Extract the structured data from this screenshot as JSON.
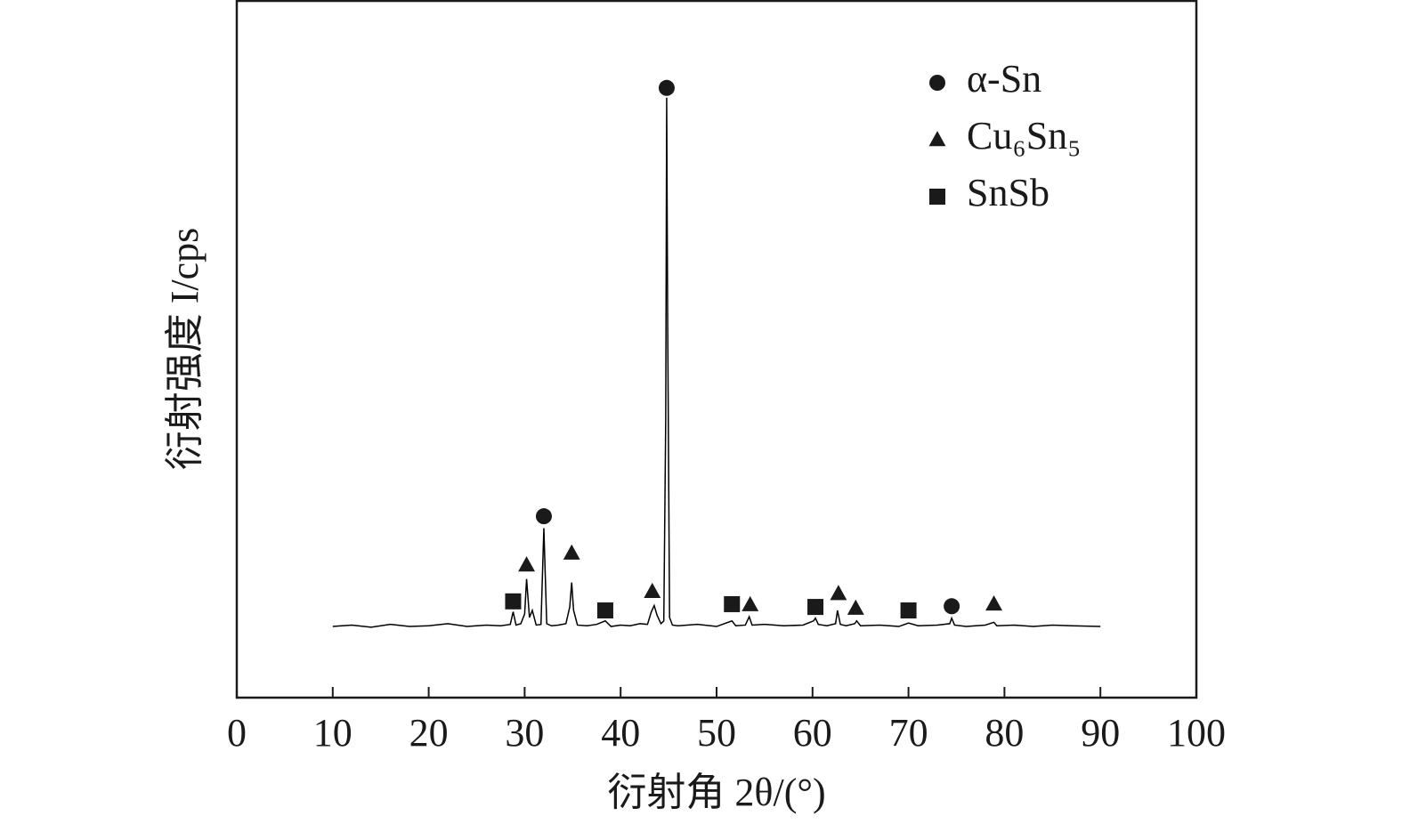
{
  "chart_data": {
    "type": "line",
    "x_label": "衍射角 2θ/(°)",
    "y_label": "衍射强度 I/cps",
    "color": "#000000",
    "x": [
      10,
      12,
      14,
      16,
      18,
      20,
      22,
      24,
      26,
      27.5,
      28.5,
      28.8,
      29.1,
      29.6,
      30.0,
      30.2,
      30.5,
      30.8,
      31.2,
      31.7,
      32.0,
      32.3,
      32.8,
      33.5,
      34.3,
      34.7,
      34.9,
      35.1,
      35.5,
      36.5,
      37.5,
      38.4,
      39,
      40,
      41,
      42,
      42.8,
      43.2,
      43.5,
      43.8,
      44.2,
      44.5,
      44.7,
      44.8,
      44.9,
      45.1,
      45.4,
      46,
      48,
      50,
      51.6,
      52,
      53,
      53.4,
      53.7,
      55,
      57,
      59,
      60.1,
      60.3,
      60.6,
      61.5,
      62.4,
      62.6,
      62.9,
      63.5,
      64.4,
      64.6,
      65,
      67,
      69,
      70,
      71,
      73,
      74.3,
      74.5,
      74.8,
      76,
      78,
      78.9,
      79.2,
      81,
      83,
      85,
      87,
      90
    ],
    "values": [
      10.2,
      10.4,
      10.1,
      10.5,
      10.2,
      10.3,
      10.6,
      10.2,
      10.4,
      10.3,
      10.5,
      12.3,
      10.4,
      10.6,
      12,
      17,
      11.5,
      12.5,
      10.4,
      10.5,
      24.3,
      10.6,
      10.3,
      10.4,
      10.6,
      13,
      16.5,
      12.5,
      10.4,
      10.3,
      10.5,
      11,
      10.2,
      10.4,
      10.3,
      10.6,
      10.5,
      12.3,
      13.2,
      11.8,
      10.6,
      11,
      40,
      86,
      55,
      11.5,
      10.4,
      10.3,
      10.5,
      10.2,
      11,
      10.3,
      10.4,
      11.6,
      10.4,
      10.5,
      10.3,
      10.4,
      11,
      11.4,
      10.5,
      10.3,
      10.6,
      12.5,
      10.5,
      10.3,
      10.6,
      11,
      10.3,
      10.4,
      10.2,
      10.7,
      10.3,
      10.4,
      10.6,
      11.4,
      10.4,
      10.2,
      10.4,
      10.8,
      10.3,
      10.4,
      10.2,
      10.4,
      10.3,
      10.2
    ],
    "series": [
      {
        "name": "α-Sn",
        "marker": "circle",
        "color": "#1a1a1a",
        "x": [
          32.0,
          44.8,
          74.5
        ],
        "values": [
          26,
          87.4,
          13.1
        ]
      },
      {
        "name": "Cu₆Sn₅",
        "marker": "triangle",
        "color": "#1a1a1a",
        "x": [
          30.2,
          34.9,
          43.3,
          53.5,
          62.7,
          64.5,
          78.9
        ],
        "values": [
          19,
          20.7,
          15.2,
          13.3,
          14.9,
          12.8,
          13.4
        ]
      },
      {
        "name": "SnSb",
        "marker": "square",
        "color": "#1a1a1a",
        "x": [
          28.8,
          38.4,
          51.6,
          60.3,
          70.0
        ],
        "values": [
          13.8,
          12.5,
          13.4,
          13,
          12.5
        ]
      }
    ],
    "xlim": [
      0,
      100
    ],
    "ylim": [
      0,
      100
    ],
    "xticks": [
      0,
      10,
      20,
      30,
      40,
      50,
      60,
      70,
      80,
      90,
      100
    ],
    "legend": "upper-right"
  }
}
